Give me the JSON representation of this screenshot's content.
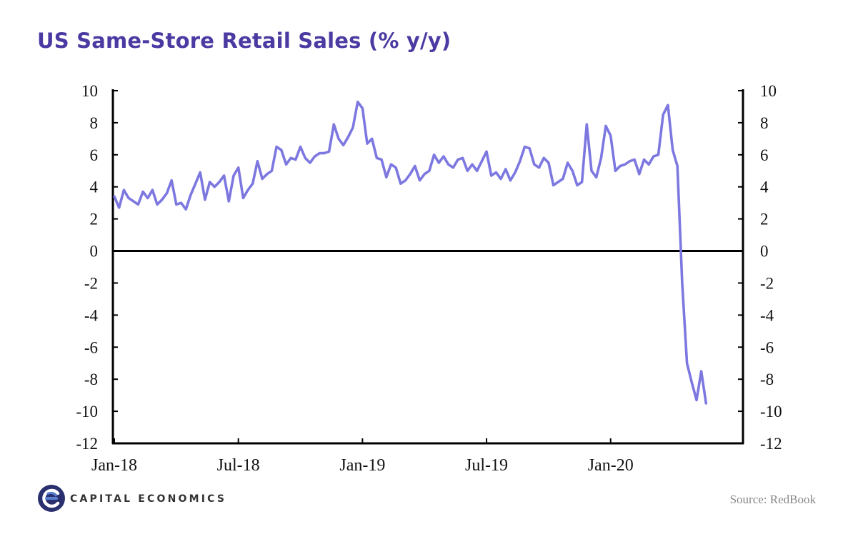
{
  "colors": {
    "title": "#4b3aa2",
    "line": "#7d78e0",
    "axis": "#000000",
    "brand_dark": "#2a2f6e",
    "brand_light": "#5a7fd0"
  },
  "brand": {
    "name": "CAPITAL ECONOMICS",
    "logo_icon": "capital-economics-logo-icon"
  },
  "source": "Source: RedBook",
  "chart_data": {
    "type": "line",
    "title": "US Same-Store Retail Sales (% y/y)",
    "ylim": [
      -12,
      10
    ],
    "yticks": [
      10,
      8,
      6,
      4,
      2,
      0,
      -2,
      -4,
      -6,
      -8,
      -10,
      -12
    ],
    "y2ticks": [
      10,
      8,
      6,
      4,
      2,
      0,
      -2,
      -4,
      -6,
      -8,
      -10,
      -12
    ],
    "x_tick_labels": [
      "Jan-18",
      "Jul-18",
      "Jan-19",
      "Jul-19",
      "Jan-20"
    ],
    "grid": false,
    "zero_line": true,
    "x_unit": "weeks from first observation (1st week of Jan-18)",
    "series": [
      {
        "name": "",
        "values": [
          3.4,
          2.7,
          3.8,
          3.3,
          3.1,
          2.9,
          3.7,
          3.3,
          3.8,
          2.9,
          3.2,
          3.6,
          4.4,
          2.9,
          3.0,
          2.6,
          3.5,
          4.2,
          4.9,
          3.2,
          4.3,
          4.0,
          4.3,
          4.7,
          3.1,
          4.7,
          5.2,
          3.3,
          3.8,
          4.2,
          5.6,
          4.5,
          4.8,
          5.0,
          6.5,
          6.3,
          5.4,
          5.8,
          5.7,
          6.5,
          5.8,
          5.5,
          5.9,
          6.1,
          6.1,
          6.2,
          7.9,
          7.0,
          6.6,
          7.1,
          7.7,
          9.3,
          8.9,
          6.7,
          7.0,
          5.8,
          5.7,
          4.6,
          5.4,
          5.2,
          4.2,
          4.4,
          4.8,
          5.3,
          4.4,
          4.8,
          5.0,
          6.0,
          5.5,
          5.9,
          5.4,
          5.2,
          5.7,
          5.8,
          5.0,
          5.4,
          5.0,
          5.6,
          6.2,
          4.7,
          4.9,
          4.5,
          5.1,
          4.4,
          4.9,
          5.6,
          6.5,
          6.4,
          5.4,
          5.2,
          5.8,
          5.5,
          4.1,
          4.3,
          4.5,
          5.5,
          5.0,
          4.1,
          4.3,
          7.9,
          5.0,
          4.6,
          5.8,
          7.8,
          7.2,
          5.0,
          5.3,
          5.4,
          5.6,
          5.7,
          4.8,
          5.7,
          5.4,
          5.9,
          6.0,
          8.5,
          9.1,
          6.3,
          5.3,
          -2.0,
          -7.0,
          -8.2,
          -9.3,
          -7.5,
          -9.5
        ]
      }
    ]
  }
}
